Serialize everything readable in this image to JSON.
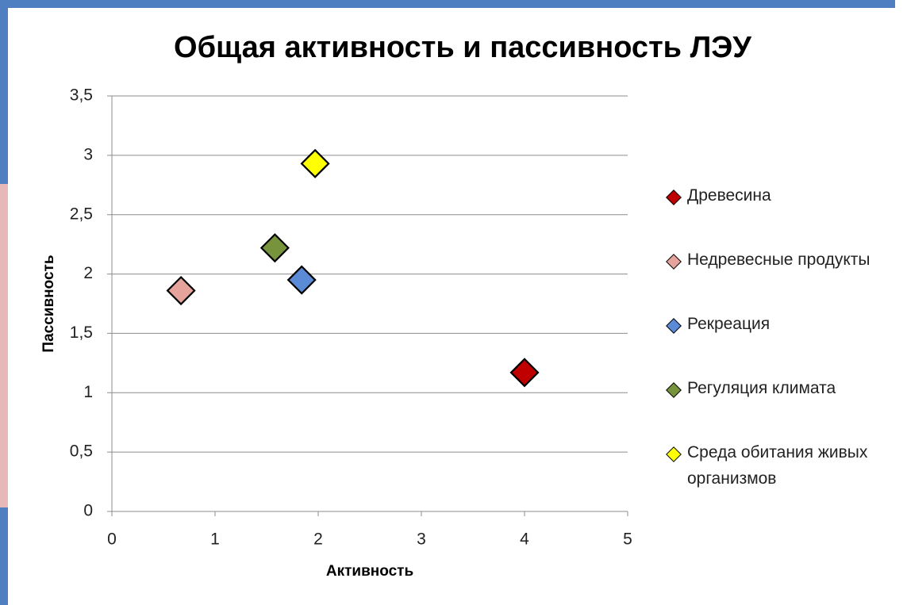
{
  "chart_data": {
    "type": "scatter",
    "title": "Общая активность и пассивность ЛЭУ",
    "x_label": "Активность",
    "y_label": "Пассивность",
    "series": [
      {
        "name": "Древесина",
        "color": "#c00000",
        "x": [
          4.0
        ],
        "values": [
          1.17
        ]
      },
      {
        "name": "Недревесные продукты",
        "color": "#e6a39c",
        "x": [
          0.67
        ],
        "values": [
          1.86
        ]
      },
      {
        "name": "Рекреация",
        "color": "#5b8bd6",
        "x": [
          1.84
        ],
        "values": [
          1.95
        ]
      },
      {
        "name": "Регуляция климата",
        "color": "#77933c",
        "x": [
          1.58
        ],
        "values": [
          2.22
        ]
      },
      {
        "name": "Среда обитания живых организмов",
        "color": "#ffff00",
        "x": [
          1.97
        ],
        "values": [
          2.93
        ]
      }
    ],
    "xlim": [
      0,
      5
    ],
    "xticks": [
      0,
      1,
      2,
      3,
      4,
      5
    ],
    "ylim": [
      0,
      3.5
    ],
    "yticks": [
      0,
      {
        "value": 0.5,
        "label": "0,5"
      },
      1,
      {
        "value": 1.5,
        "label": "1,5"
      },
      2,
      {
        "value": 2.5,
        "label": "2,5"
      },
      3,
      {
        "value": 3.5,
        "label": "3,5"
      }
    ],
    "grid": true,
    "legend": "right"
  }
}
